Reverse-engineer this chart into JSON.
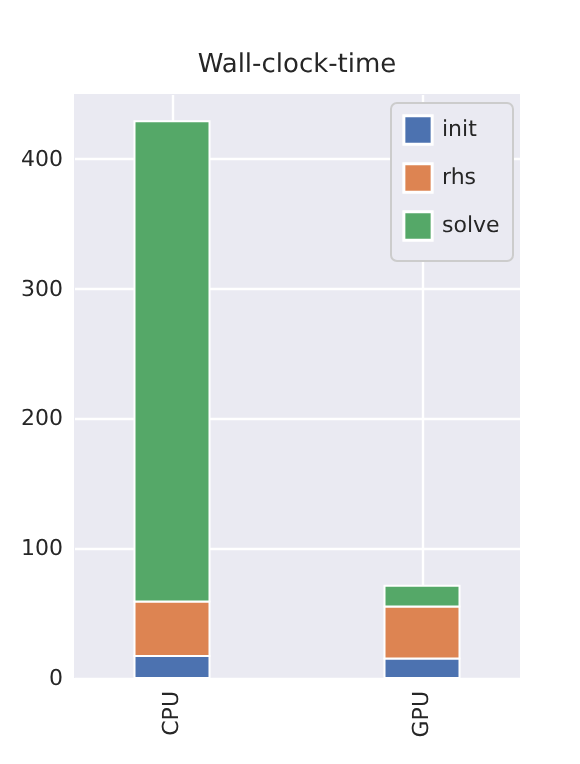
{
  "chart_data": {
    "type": "bar",
    "title": "Wall-clock-time",
    "categories": [
      "CPU",
      "GPU"
    ],
    "stacked": true,
    "series": [
      {
        "name": "init",
        "color": "#4c72b0",
        "values": [
          17,
          15
        ]
      },
      {
        "name": "rhs",
        "color": "#dd8452",
        "values": [
          42,
          40
        ]
      },
      {
        "name": "solve",
        "color": "#55a868",
        "values": [
          370,
          16
        ]
      }
    ],
    "ylim": [
      0,
      450
    ],
    "yticks": [
      0,
      100,
      200,
      300,
      400
    ],
    "grid": true,
    "legend": "top right"
  }
}
